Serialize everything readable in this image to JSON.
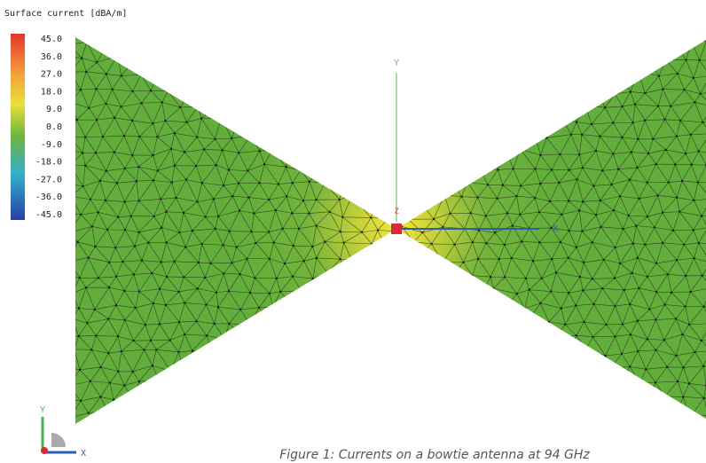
{
  "colorbar": {
    "title": "Surface current [dBA/m]",
    "labels": [
      "45.0",
      "36.0",
      "27.0",
      "18.0",
      "9.0",
      "0.0",
      "-9.0",
      "-18.0",
      "-27.0",
      "-36.0",
      "-45.0"
    ]
  },
  "axes": {
    "y": "Y",
    "x": "X",
    "z": "Z"
  },
  "corner_axes": {
    "y": "Y",
    "x": "X"
  },
  "caption": "Figure 1: Currents on a bowtie antenna at 94 GHz"
}
